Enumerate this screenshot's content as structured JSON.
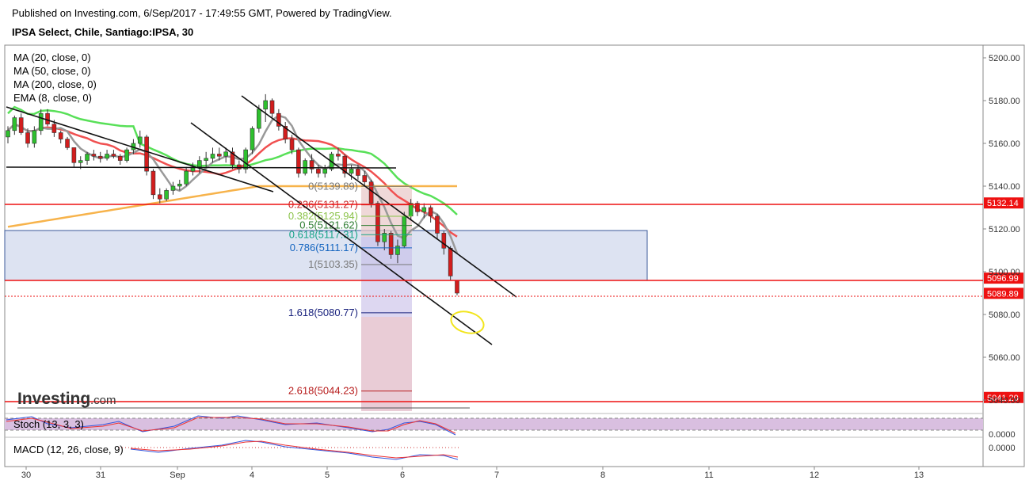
{
  "header": {
    "published": "Published on Investing.com, 6/Sep/2017 - 17:49:55 GMT, Powered by TradingView.",
    "symbol": "IPSA Select, Chile, Santiago:IPSA, 30"
  },
  "legend": {
    "ma20": "MA (20, close, 0)",
    "ma50": "MA (50, close, 0)",
    "ma200": "MA (200, close, 0)",
    "ema8": "EMA (8, close, 0)"
  },
  "stoch_label": "Stoch (13, 3, 3)",
  "macd_label": "MACD (12, 26, close, 9)",
  "logo": "Investing",
  "logo_suffix": ".com",
  "colors": {
    "up": "#2ec02e",
    "down": "#d21d1d",
    "ma20": "#999999",
    "ma50": "#f05050",
    "ma200": "#f7b34b",
    "ema8": "#58e058",
    "hline": "#ee1111",
    "zone": "#dde3f2",
    "stoch": "#cc9dd0"
  },
  "chart_data": {
    "type": "candlestick",
    "title": "IPSA Select, Chile, Santiago:IPSA, 30",
    "ylim": [
      5028,
      5207
    ],
    "yticks": [
      5200.0,
      5180.0,
      5160.0,
      5140.0,
      5120.0,
      5100.0,
      5080.0,
      5060.0,
      5040.0
    ],
    "x_ticks": [
      "30",
      "31",
      "Sep",
      "4",
      "5",
      "6",
      "7",
      "8",
      "11",
      "12",
      "13"
    ],
    "price_tags": [
      5132.14,
      5096.99,
      5089.89,
      5041.2
    ],
    "fib_levels": [
      {
        "label": "0(5139.89)",
        "value": 5139.89,
        "color": "#777777"
      },
      {
        "label": "0.236(5131.27)",
        "value": 5131.27,
        "color": "#c62828"
      },
      {
        "label": "0.382(5125.94)",
        "value": 5125.94,
        "color": "#8bc34a"
      },
      {
        "label": "0.5(5121.62)",
        "value": 5121.62,
        "color": "#2e7d32"
      },
      {
        "label": "0.618(5117.31)",
        "value": 5117.31,
        "color": "#17a589"
      },
      {
        "label": "0.786(5111.17)",
        "value": 5111.17,
        "color": "#1565c0"
      },
      {
        "label": "1(5103.35)",
        "value": 5103.35,
        "color": "#777777"
      },
      {
        "label": "1.618(5080.77)",
        "value": 5080.77,
        "color": "#1a237e"
      },
      {
        "label": "2.618(5044.23)",
        "value": 5044.23,
        "color": "#b71c1c"
      }
    ],
    "stoch_tick": "0.0000",
    "macd_tick": "0.0000",
    "candles": [
      [
        5163,
        5168,
        5160,
        5166
      ],
      [
        5166,
        5173,
        5164,
        5172
      ],
      [
        5172,
        5174,
        5164,
        5165
      ],
      [
        5165,
        5167,
        5158,
        5160
      ],
      [
        5160,
        5168,
        5158,
        5166
      ],
      [
        5166,
        5176,
        5164,
        5174
      ],
      [
        5174,
        5176,
        5168,
        5169
      ],
      [
        5169,
        5171,
        5163,
        5165
      ],
      [
        5165,
        5166,
        5160,
        5162
      ],
      [
        5162,
        5163,
        5157,
        5158
      ],
      [
        5158,
        5158,
        5149,
        5151
      ],
      [
        5151,
        5154,
        5148,
        5152
      ],
      [
        5152,
        5156,
        5150,
        5155
      ],
      [
        5155,
        5157,
        5152,
        5154
      ],
      [
        5154,
        5156,
        5151,
        5153
      ],
      [
        5153,
        5157,
        5152,
        5155
      ],
      [
        5155,
        5157,
        5153,
        5154
      ],
      [
        5154,
        5155,
        5150,
        5152
      ],
      [
        5152,
        5158,
        5151,
        5157
      ],
      [
        5157,
        5162,
        5155,
        5160
      ],
      [
        5160,
        5166,
        5158,
        5163
      ],
      [
        5163,
        5164,
        5145,
        5147
      ],
      [
        5147,
        5148,
        5134,
        5136
      ],
      [
        5136,
        5139,
        5132,
        5134
      ],
      [
        5134,
        5139,
        5133,
        5138
      ],
      [
        5138,
        5142,
        5136,
        5140
      ],
      [
        5140,
        5143,
        5138,
        5141
      ],
      [
        5141,
        5149,
        5140,
        5147
      ],
      [
        5147,
        5151,
        5145,
        5149
      ],
      [
        5149,
        5154,
        5146,
        5152
      ],
      [
        5152,
        5156,
        5149,
        5153
      ],
      [
        5153,
        5158,
        5151,
        5155
      ],
      [
        5155,
        5158,
        5152,
        5154
      ],
      [
        5154,
        5158,
        5151,
        5156
      ],
      [
        5156,
        5158,
        5148,
        5150
      ],
      [
        5150,
        5152,
        5146,
        5148
      ],
      [
        5148,
        5158,
        5146,
        5157
      ],
      [
        5157,
        5168,
        5155,
        5167
      ],
      [
        5167,
        5178,
        5165,
        5176
      ],
      [
        5176,
        5183,
        5170,
        5180
      ],
      [
        5180,
        5181,
        5172,
        5174
      ],
      [
        5174,
        5176,
        5166,
        5168
      ],
      [
        5168,
        5170,
        5160,
        5162
      ],
      [
        5162,
        5164,
        5155,
        5157
      ],
      [
        5157,
        5158,
        5144,
        5146
      ],
      [
        5146,
        5153,
        5145,
        5152
      ],
      [
        5152,
        5155,
        5146,
        5148
      ],
      [
        5148,
        5150,
        5144,
        5146
      ],
      [
        5146,
        5150,
        5144,
        5148
      ],
      [
        5148,
        5156,
        5147,
        5155
      ],
      [
        5155,
        5158,
        5152,
        5154
      ],
      [
        5154,
        5155,
        5144,
        5146
      ],
      [
        5146,
        5150,
        5143,
        5148
      ],
      [
        5148,
        5150,
        5143,
        5145
      ],
      [
        5145,
        5147,
        5140,
        5142
      ],
      [
        5142,
        5143,
        5130,
        5132
      ],
      [
        5132,
        5133,
        5112,
        5114
      ],
      [
        5114,
        5120,
        5110,
        5118
      ],
      [
        5118,
        5119,
        5106,
        5108
      ],
      [
        5108,
        5115,
        5104,
        5112
      ],
      [
        5112,
        5128,
        5111,
        5126
      ],
      [
        5126,
        5134,
        5124,
        5132
      ],
      [
        5132,
        5133,
        5126,
        5128
      ],
      [
        5128,
        5132,
        5125,
        5130
      ],
      [
        5130,
        5131,
        5123,
        5126
      ],
      [
        5126,
        5127,
        5115,
        5118
      ],
      [
        5118,
        5119,
        5108,
        5111
      ],
      [
        5111,
        5112,
        5096,
        5098
      ],
      [
        5096,
        5096,
        5089,
        5090
      ]
    ]
  }
}
